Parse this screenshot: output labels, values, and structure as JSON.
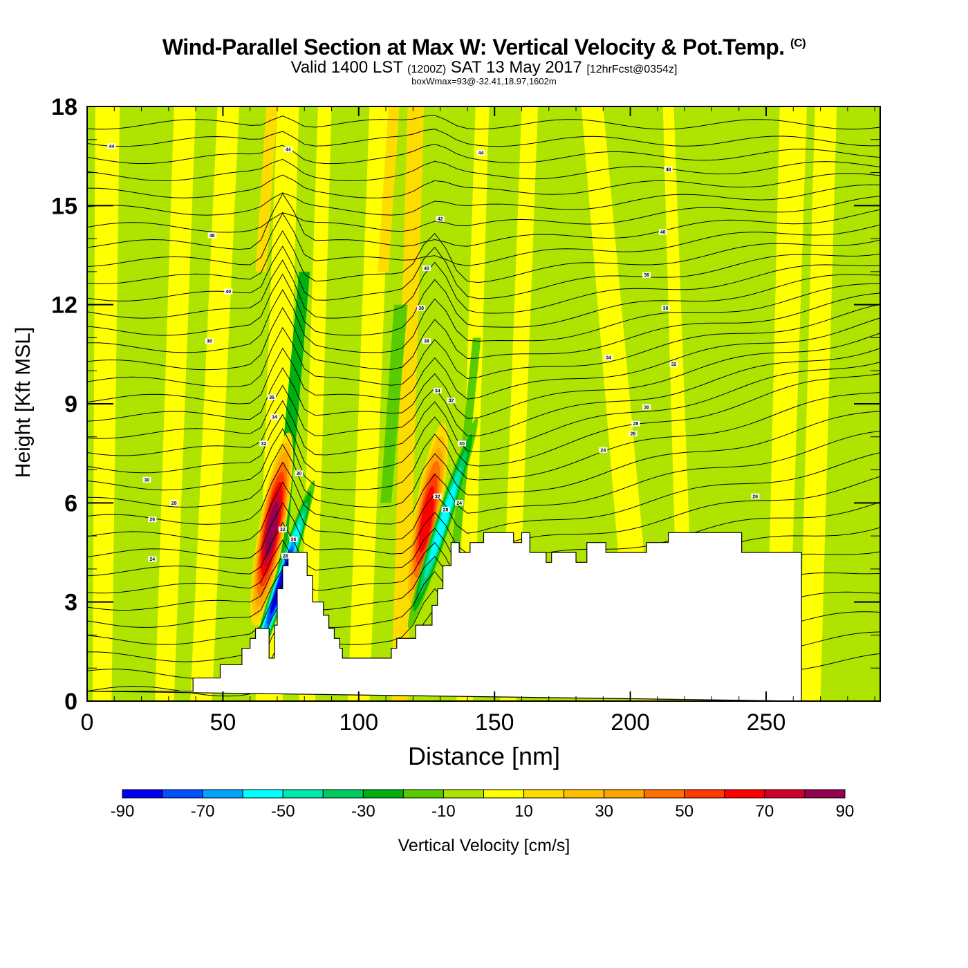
{
  "chart_data": {
    "type": "heatmap",
    "title": "Wind-Parallel Section at Max W: Vertical Velocity & Pot.Temp.",
    "title_mark": "(C)",
    "subtitle_main": "Valid 1400 LST",
    "subtitle_utc": "(1200Z)",
    "subtitle_date": "SAT 13 May 2017",
    "subtitle_fcst": "[12hrFcst@0354z]",
    "info": "boxWmax=93@-32.41,18.97,1602m",
    "xlabel": "Distance [nm]",
    "ylabel": "Height [Kft MSL]",
    "xlim": [
      0,
      292
    ],
    "ylim": [
      0,
      18
    ],
    "x_ticks": [
      "0",
      "50",
      "100",
      "150",
      "200",
      "250"
    ],
    "y_ticks": [
      "0",
      "3",
      "6",
      "9",
      "12",
      "15",
      "18"
    ],
    "colorbar": {
      "label": "Vertical Velocity [cm/s]",
      "levels": [
        -90,
        -80,
        -70,
        -60,
        -50,
        -40,
        -30,
        -20,
        -10,
        0,
        10,
        20,
        30,
        40,
        50,
        60,
        70,
        80,
        90
      ],
      "tick_labels": [
        "-90",
        "-70",
        "-50",
        "-30",
        "-10",
        "10",
        "30",
        "50",
        "70",
        "90"
      ],
      "colors": [
        "#0000f0",
        "#0050ff",
        "#00a5ff",
        "#00ffff",
        "#00e8b0",
        "#00cc60",
        "#00b010",
        "#58cc00",
        "#aee400",
        "#ffff00",
        "#ffdc00",
        "#ffc000",
        "#ffa500",
        "#ff7000",
        "#ff3c00",
        "#ff0000",
        "#d00028",
        "#960050"
      ]
    },
    "terrain_profile": {
      "distance_nm": [
        0,
        39,
        39,
        49,
        49,
        57,
        57,
        60,
        60,
        62,
        62,
        67,
        67,
        69,
        69,
        70,
        70,
        72,
        72,
        74,
        74,
        81,
        81,
        83,
        83,
        87,
        87,
        89,
        89,
        91,
        91,
        93,
        93,
        94,
        94,
        98,
        98,
        112,
        112,
        114,
        114,
        121,
        121,
        127,
        127,
        129,
        129,
        131,
        131,
        134,
        134,
        137,
        137,
        141,
        141,
        146,
        146,
        157,
        157,
        160,
        160,
        163,
        163,
        169,
        169,
        171,
        171,
        180,
        180,
        184,
        184,
        191,
        191,
        206,
        206,
        214,
        214,
        241,
        241,
        263,
        263,
        292,
        292
      ],
      "height_kft": [
        0.3,
        0.3,
        0.7,
        0.7,
        1.1,
        1.1,
        1.6,
        1.6,
        1.9,
        1.9,
        2.2,
        2.2,
        1.3,
        1.3,
        2.3,
        2.3,
        3.4,
        3.4,
        4.1,
        4.1,
        4.5,
        4.5,
        3.8,
        3.8,
        3.0,
        3.0,
        2.6,
        2.6,
        2.2,
        2.2,
        1.9,
        1.9,
        1.6,
        1.6,
        1.3,
        1.3,
        1.3,
        1.3,
        1.6,
        1.6,
        1.9,
        1.9,
        2.3,
        2.3,
        2.9,
        2.9,
        3.4,
        3.4,
        4.1,
        4.1,
        4.8,
        4.8,
        4.5,
        4.5,
        4.8,
        4.8,
        5.1,
        5.1,
        4.8,
        4.8,
        5.1,
        5.1,
        4.5,
        4.5,
        4.2,
        4.2,
        4.5,
        4.5,
        4.2,
        4.2,
        4.8,
        4.8,
        4.5,
        4.5,
        4.8,
        4.8,
        5.1,
        5.1,
        4.5,
        4.5,
        0
      ]
    },
    "updraft_cores": [
      {
        "distance_nm": 68,
        "height_kft": 5.2,
        "w_cm_s": 80
      },
      {
        "distance_nm": 125,
        "height_kft": 5.5,
        "w_cm_s": 60
      }
    ],
    "downdraft_cores": [
      {
        "distance_nm": 71,
        "height_kft": 3.5,
        "w_cm_s": -80
      },
      {
        "distance_nm": 131,
        "height_kft": 5.4,
        "w_cm_s": -50
      }
    ],
    "theta_contour_labels": [
      {
        "text": "44",
        "distance_nm": 9,
        "height_kft": 16.8
      },
      {
        "text": "44",
        "distance_nm": 74,
        "height_kft": 16.7
      },
      {
        "text": "44",
        "distance_nm": 145,
        "height_kft": 16.6
      },
      {
        "text": "48",
        "distance_nm": 214,
        "height_kft": 16.1
      },
      {
        "text": "48",
        "distance_nm": 46,
        "height_kft": 14.1
      },
      {
        "text": "42",
        "distance_nm": 130,
        "height_kft": 14.6
      },
      {
        "text": "40",
        "distance_nm": 212,
        "height_kft": 14.2
      },
      {
        "text": "40",
        "distance_nm": 52,
        "height_kft": 12.4
      },
      {
        "text": "40",
        "distance_nm": 125,
        "height_kft": 13.1
      },
      {
        "text": "38",
        "distance_nm": 206,
        "height_kft": 12.9
      },
      {
        "text": "38",
        "distance_nm": 123,
        "height_kft": 11.9
      },
      {
        "text": "36",
        "distance_nm": 213,
        "height_kft": 11.9
      },
      {
        "text": "38",
        "distance_nm": 45,
        "height_kft": 10.9
      },
      {
        "text": "38",
        "distance_nm": 125,
        "height_kft": 10.9
      },
      {
        "text": "34",
        "distance_nm": 192,
        "height_kft": 10.4
      },
      {
        "text": "32",
        "distance_nm": 216,
        "height_kft": 10.2
      },
      {
        "text": "36",
        "distance_nm": 68,
        "height_kft": 9.2
      },
      {
        "text": "34",
        "distance_nm": 129,
        "height_kft": 9.4
      },
      {
        "text": "32",
        "distance_nm": 134,
        "height_kft": 9.1
      },
      {
        "text": "34",
        "distance_nm": 69,
        "height_kft": 8.6
      },
      {
        "text": "30",
        "distance_nm": 206,
        "height_kft": 8.9
      },
      {
        "text": "28",
        "distance_nm": 202,
        "height_kft": 8.4
      },
      {
        "text": "26",
        "distance_nm": 201,
        "height_kft": 8.1
      },
      {
        "text": "32",
        "distance_nm": 65,
        "height_kft": 7.8
      },
      {
        "text": "30",
        "distance_nm": 138,
        "height_kft": 7.8
      },
      {
        "text": "24",
        "distance_nm": 190,
        "height_kft": 7.6
      },
      {
        "text": "30",
        "distance_nm": 78,
        "height_kft": 6.9
      },
      {
        "text": "30",
        "distance_nm": 22,
        "height_kft": 6.7
      },
      {
        "text": "28",
        "distance_nm": 32,
        "height_kft": 6.0
      },
      {
        "text": "32",
        "distance_nm": 129,
        "height_kft": 6.2
      },
      {
        "text": "24",
        "distance_nm": 137,
        "height_kft": 6.0
      },
      {
        "text": "26",
        "distance_nm": 246,
        "height_kft": 6.2
      },
      {
        "text": "26",
        "distance_nm": 24,
        "height_kft": 5.5
      },
      {
        "text": "28",
        "distance_nm": 132,
        "height_kft": 5.8
      },
      {
        "text": "32",
        "distance_nm": 72,
        "height_kft": 5.2
      },
      {
        "text": "24",
        "distance_nm": 24,
        "height_kft": 4.3
      },
      {
        "text": "28",
        "distance_nm": 73,
        "height_kft": 4.4
      },
      {
        "text": "26",
        "distance_nm": 76,
        "height_kft": 4.9
      }
    ]
  }
}
